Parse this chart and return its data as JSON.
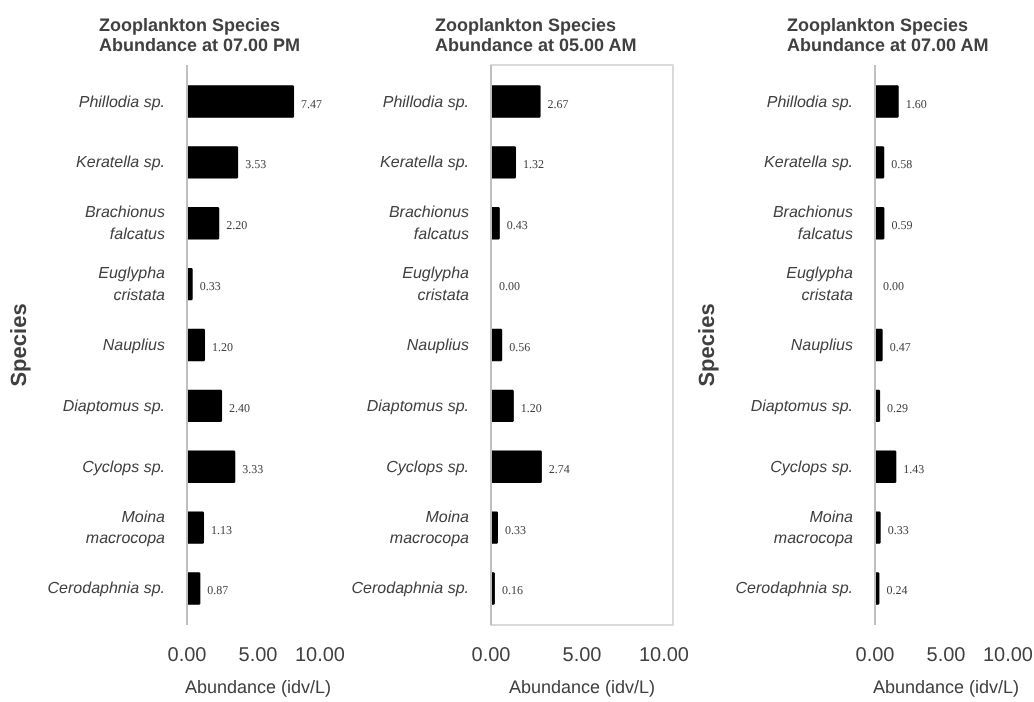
{
  "chart_data": [
    {
      "type": "bar",
      "orientation": "horizontal",
      "title": "Zooplankton Species Abundance at 07.00 PM",
      "xlabel": "Abundance (idv/L)",
      "ylabel": "Species",
      "categories": [
        "Phillodia sp.",
        "Keratella sp.",
        "Brachionus falcatus",
        "Euglypha cristata",
        "Nauplius",
        "Diaptomus sp.",
        "Cyclops sp.",
        "Moina macrocopa",
        "Cerodaphnia sp."
      ],
      "values": [
        7.47,
        3.53,
        2.2,
        0.33,
        1.2,
        2.4,
        3.33,
        1.13,
        0.87
      ],
      "value_labels": [
        "7.47",
        "3.53",
        "2.20",
        "0.33",
        "1.20",
        "2.40",
        "3.33",
        "1.13",
        "0.87"
      ],
      "color": "#000000",
      "xlim": [
        0,
        10
      ],
      "xticks": [
        {
          "value": 0,
          "label": "0.00"
        },
        {
          "value": 5,
          "label": "5.00"
        },
        {
          "value": 10,
          "label": "10.00"
        }
      ],
      "grid": false
    },
    {
      "type": "bar",
      "orientation": "horizontal",
      "title": "Zooplankton Species Abundance at 05.00 AM",
      "xlabel": "Abundance (idv/L)",
      "categories": [
        "Phillodia sp.",
        "Keratella sp.",
        "Brachionus falcatus",
        "Euglypha cristata",
        "Nauplius",
        "Diaptomus sp.",
        "Cyclops sp.",
        "Moina macrocopa",
        "Cerodaphnia sp."
      ],
      "values": [
        2.67,
        1.32,
        0.43,
        0.0,
        0.56,
        1.2,
        2.74,
        0.33,
        0.16
      ],
      "value_labels": [
        "2.67",
        "1.32",
        "0.43",
        "0.00",
        "0.56",
        "1.20",
        "2.74",
        "0.33",
        "0.16"
      ],
      "color": "#000000",
      "xlim": [
        0,
        10
      ],
      "xticks": [
        {
          "value": 0,
          "label": "0.00"
        },
        {
          "value": 5,
          "label": "5.00"
        },
        {
          "value": 10,
          "label": "10.00"
        }
      ],
      "grid": false
    },
    {
      "type": "bar",
      "orientation": "horizontal",
      "title": "Zooplankton Species Abundance at 07.00 AM",
      "xlabel": "Abundance (idv/L)",
      "ylabel": "Species",
      "categories": [
        "Phillodia sp.",
        "Keratella sp.",
        "Brachionus falcatus",
        "Euglypha cristata",
        "Nauplius",
        "Diaptomus sp.",
        "Cyclops sp.",
        "Moina macrocopa",
        "Cerodaphnia sp."
      ],
      "values": [
        1.6,
        0.58,
        0.59,
        0.0,
        0.47,
        0.29,
        1.43,
        0.33,
        0.24
      ],
      "value_labels": [
        "1.60",
        "0.58",
        "0.59",
        "0.00",
        "0.47",
        "0.29",
        "1.43",
        "0.33",
        "0.24"
      ],
      "color": "#000000",
      "xlim": [
        0,
        10
      ],
      "xticks": [
        {
          "value": 0,
          "label": "0.00"
        },
        {
          "value": 5,
          "label": "5.00"
        },
        {
          "value": 10,
          "label": "10.00"
        }
      ],
      "grid": false
    }
  ]
}
